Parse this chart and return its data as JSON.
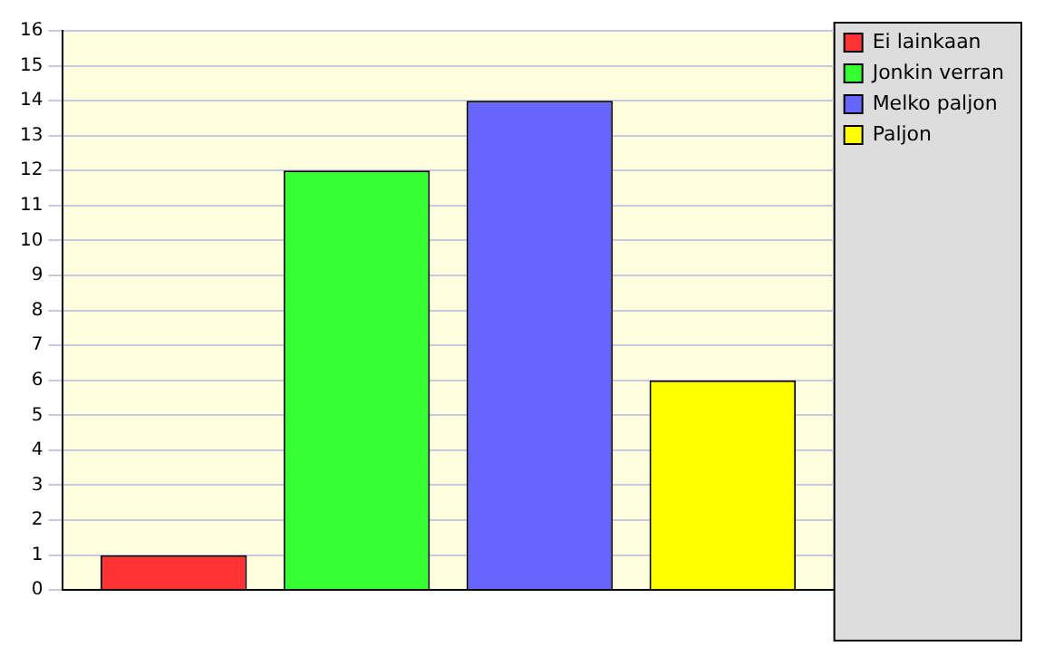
{
  "chart_data": {
    "type": "bar",
    "categories": [
      null
    ],
    "series": [
      {
        "name": "Ei lainkaan",
        "color": "#ff3333",
        "values": [
          1
        ]
      },
      {
        "name": "Jonkin verran",
        "color": "#33ff33",
        "values": [
          12
        ]
      },
      {
        "name": "Melko paljon",
        "color": "#6666ff",
        "values": [
          14
        ]
      },
      {
        "name": "Paljon",
        "color": "#ffff00",
        "values": [
          6
        ]
      }
    ],
    "ylim": [
      0,
      16
    ],
    "yticks": [
      0,
      1,
      2,
      3,
      4,
      5,
      6,
      7,
      8,
      9,
      10,
      11,
      12,
      13,
      14,
      15,
      16
    ],
    "grid": "y",
    "legend": "top right"
  }
}
